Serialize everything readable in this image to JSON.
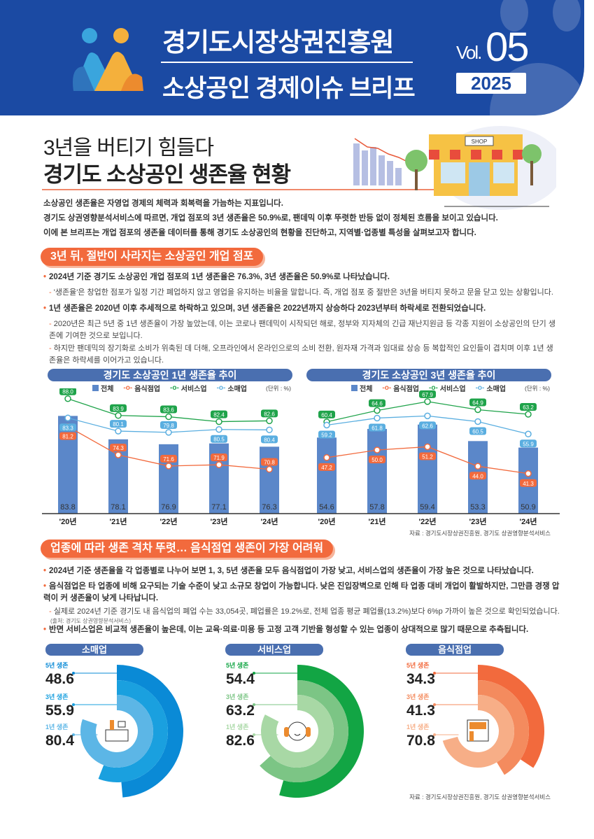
{
  "header": {
    "org": "경기도시장상권진흥원",
    "series": "소상공인 경제이슈 브리프",
    "vol_label": "Vol.",
    "vol_num": "05",
    "year": "2025"
  },
  "title": {
    "line1": "3년을 버티기 힘들다",
    "line2": "경기도 소상공인 생존율 현황"
  },
  "illustration": {
    "shop_sign": "SHOP"
  },
  "intro": [
    "소상공인 생존율은 자영업 경제의 체력과 회복력을 가늠하는 지표입니다.",
    "경기도 상권영향분석서비스에 따르면, 개업 점포의 3년 생존율은 50.9%로, 팬데믹 이후 뚜렷한 반등 없이 정체된 흐름을 보이고 있습니다.",
    "이에 본 브리프는 개업 점포의 생존율 데이터를 통해 경기도 소상공인의 현황을 진단하고, 지역별·업종별 특성을 살펴보고자 합니다."
  ],
  "section1": {
    "heading": "3년 뒤, 절반이 사라지는 소상공인 개업 점포",
    "b0": "2024년 기준 경기도 소상공인 개업 점포의 1년 생존율은 76.3%, 3년 생존율은 50.9%로 나타났습니다.",
    "b0_sub": "'생존율'은 창업한 점포가 일정 기간 폐업하지 않고 영업을 유지하는 비율을 말합니다. 즉, 개업 점포 중 절반은 3년을 버티지 못하고 문을 닫고 있는 상황입니다.",
    "b1": "1년 생존율은 2020년 이후 추세적으로 하락하고 있으며, 3년 생존율은 2022년까지 상승하다 2023년부터 하락세로 전환되었습니다.",
    "b1_sub0": "2020년은 최근 5년 중 1년 생존율이 가장 높았는데, 이는 코로나 팬데믹이 시작되던 해로, 정부와 지자체의 긴급 재난지원금 등 각종 지원이 소상공인의 단기 생존에 기여한 것으로 보입니다.",
    "b1_sub1": "하지만 팬데믹의 장기화로 소비가 위축된 데 더해, 오프라인에서 온라인으로의 소비 전환, 원자재 가격과 임대료 상승 등 복합적인 요인들이 겹치며 이후 1년 생존율은 하락세를 이어가고 있습니다.",
    "source": "자료 : 경기도시장상권진흥원, 경기도 상권영향분석서비스"
  },
  "legend": {
    "total": "전체",
    "food": "음식점업",
    "service": "서비스업",
    "retail": "소매업",
    "unit": "(단위 : %)"
  },
  "colors": {
    "bar": "#5b87c9",
    "food": "#f26a3d",
    "service": "#1fa34a",
    "retail": "#5aaee0",
    "accent": "#f26a3d",
    "header": "#1b4aa3"
  },
  "chart_data": [
    {
      "type": "bar+line",
      "title": "경기도 소상공인 1년 생존율 추이",
      "categories": [
        "'20년",
        "'21년",
        "'22년",
        "'23년",
        "'24년"
      ],
      "ylim": [
        60,
        90
      ],
      "bars": {
        "name": "전체",
        "values": [
          83.8,
          78.1,
          76.9,
          77.1,
          76.3
        ]
      },
      "series": [
        {
          "name": "음식점업",
          "key": "food",
          "values": [
            81.2,
            74.3,
            71.6,
            71.9,
            70.8
          ]
        },
        {
          "name": "서비스업",
          "key": "service",
          "values": [
            88.0,
            83.9,
            83.6,
            82.4,
            82.6
          ]
        },
        {
          "name": "소매업",
          "key": "retail",
          "values": [
            83.3,
            80.1,
            79.8,
            80.5,
            80.4
          ]
        }
      ]
    },
    {
      "type": "bar+line",
      "title": "경기도 소상공인 3년 생존율 추이",
      "categories": [
        "'20년",
        "'21년",
        "'22년",
        "'23년",
        "'24년"
      ],
      "ylim": [
        26.5,
        72
      ],
      "bars": {
        "name": "전체",
        "values": [
          54.6,
          57.8,
          59.4,
          53.3,
          50.9
        ]
      },
      "series": [
        {
          "name": "음식점업",
          "key": "food",
          "values": [
            47.2,
            50.0,
            51.2,
            44.0,
            41.3
          ]
        },
        {
          "name": "서비스업",
          "key": "service",
          "values": [
            60.4,
            64.6,
            67.9,
            64.9,
            63.2
          ]
        },
        {
          "name": "소매업",
          "key": "retail",
          "values": [
            59.2,
            61.8,
            62.6,
            60.5,
            55.9
          ]
        }
      ]
    },
    {
      "type": "radial-bar",
      "title": "소매업",
      "labels": [
        "5년 생존",
        "3년 생존",
        "1년 생존"
      ],
      "values": [
        48.6,
        55.9,
        80.4
      ],
      "colors": [
        "#0a8ad6",
        "#1aa0df",
        "#5cb6e6"
      ]
    },
    {
      "type": "radial-bar",
      "title": "서비스업",
      "labels": [
        "5년 생존",
        "3년 생존",
        "1년 생존"
      ],
      "values": [
        54.4,
        63.2,
        82.6
      ],
      "colors": [
        "#12a544",
        "#7cc585",
        "#a8d8a5"
      ]
    },
    {
      "type": "radial-bar",
      "title": "음식점업",
      "labels": [
        "5년 생존",
        "3년 생존",
        "1년 생존"
      ],
      "values": [
        34.3,
        41.3,
        70.8
      ],
      "colors": [
        "#f26a3d",
        "#f48b5e",
        "#f7ae87"
      ]
    }
  ],
  "section2": {
    "heading": "업종에 따라 생존 격차 뚜렷… 음식점업 생존이 가장 어려워",
    "b0": "2024년 기준 생존율을 각 업종별로 나누어 보면 1, 3, 5년 생존율 모두 음식점업이 가장 낮고, 서비스업의 생존율이 가장 높은 것으로 나타났습니다.",
    "b1": "음식점업은 타 업종에 비해 요구되는 기술 수준이 낮고 소규모 창업이 가능합니다. 낮은 진입장벽으로 인해 타 업종 대비 개업이 활발하지만, 그만큼 경쟁 압력이 커 생존율이 낮게 나타납니다.",
    "b1_sub": "실제로 2024년 기준 경기도 내 음식업의 폐업 수는 33,054곳, 폐업률은 19.2%로, 전체 업종 평균 폐업률(13.2%)보다 6%p 가까이 높은 것으로 확인되었습니다.",
    "b1_note": "(출처: 경기도 상권영향분석서비스)",
    "b2": "반면 서비스업은 비교적 생존율이 높은데, 이는 교육·의료·미용 등 고정 고객 기반을 형성할 수 있는 업종이 상대적으로 많기 때문으로 추측됩니다.",
    "source": "자료 : 경기도시장상권진흥원, 경기도 상권영향분석서비스"
  }
}
